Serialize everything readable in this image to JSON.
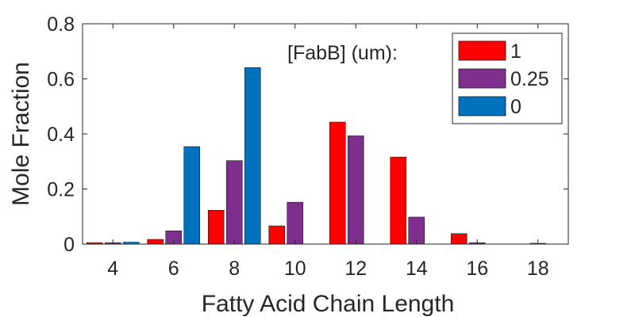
{
  "chart_data": {
    "type": "bar",
    "title": "",
    "xlabel": "Fatty Acid Chain Length",
    "ylabel": "Mole Fraction",
    "categories": [
      "4",
      "6",
      "8",
      "10",
      "12",
      "14",
      "16",
      "18"
    ],
    "ylim": [
      0,
      0.8
    ],
    "yticks": [
      "0",
      "0.2",
      "0.4",
      "0.6",
      "0.8"
    ],
    "yticks_values": [
      0,
      0.2,
      0.4,
      0.6,
      0.8
    ],
    "grid": false,
    "legend": {
      "title": "[FabB] (um):",
      "placement": "top-right"
    },
    "series": [
      {
        "name": "1",
        "color": "#ff0000",
        "values": [
          0.005,
          0.017,
          0.123,
          0.066,
          0.443,
          0.316,
          0.038,
          0.0
        ]
      },
      {
        "name": "0.25",
        "color": "#7e2f8e",
        "values": [
          0.005,
          0.048,
          0.303,
          0.152,
          0.393,
          0.098,
          0.005,
          0.003
        ]
      },
      {
        "name": "0",
        "color": "#0072bd",
        "values": [
          0.007,
          0.354,
          0.641,
          0.0,
          0.0,
          0.0,
          0.0,
          0.0
        ]
      }
    ]
  }
}
